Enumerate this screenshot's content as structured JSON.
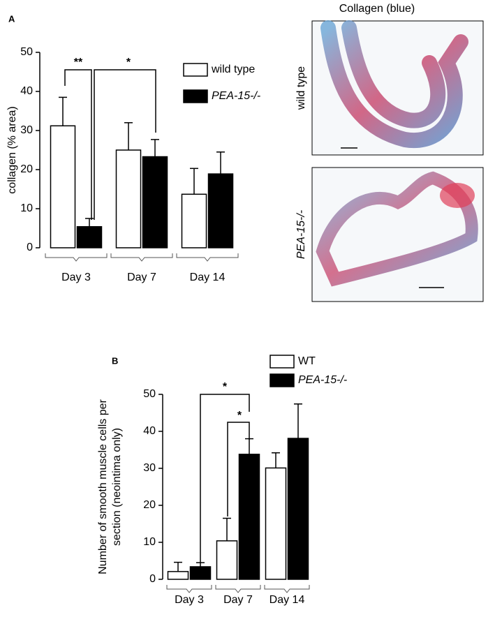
{
  "images": {
    "title": "Collagen (blue)",
    "labels": [
      "wild type",
      "PEA-15-/-"
    ]
  },
  "chart_data": [
    {
      "type": "bar",
      "panel": "A",
      "ylabel": [
        "collagen (% area)"
      ],
      "categories": [
        "Day 3",
        "Day 7",
        "Day 14"
      ],
      "series": [
        {
          "name": "wild type",
          "color": "#ffffff",
          "values": [
            31.2,
            25,
            13.7
          ],
          "errors": [
            7.3,
            7,
            6.6
          ]
        },
        {
          "name": "PEA-15-/-",
          "color": "#000000",
          "values": [
            5.4,
            23.3,
            18.9
          ],
          "errors": [
            2.1,
            4.4,
            5.6
          ]
        }
      ],
      "ylim": [
        0,
        50
      ],
      "yticks": [
        0,
        10,
        20,
        30,
        40,
        50
      ],
      "annotations": [
        "**",
        "*"
      ]
    },
    {
      "type": "bar",
      "panel": "B",
      "ylabel": [
        "Number of smooth muscle cells per",
        "section (neointima only)"
      ],
      "categories": [
        "Day 3",
        "Day 7",
        "Day 14"
      ],
      "series": [
        {
          "name": "WT",
          "color": "#ffffff",
          "values": [
            2.1,
            10.4,
            30.1
          ],
          "errors": [
            2.5,
            6.1,
            4.1
          ]
        },
        {
          "name": "PEA-15-/-",
          "color": "#000000",
          "values": [
            3.4,
            33.8,
            38.1
          ],
          "errors": [
            1.1,
            4.2,
            9.3
          ]
        }
      ],
      "ylim": [
        0,
        50
      ],
      "yticks": [
        0,
        10,
        20,
        30,
        40,
        50
      ],
      "annotations": [
        "*",
        "*"
      ]
    }
  ]
}
